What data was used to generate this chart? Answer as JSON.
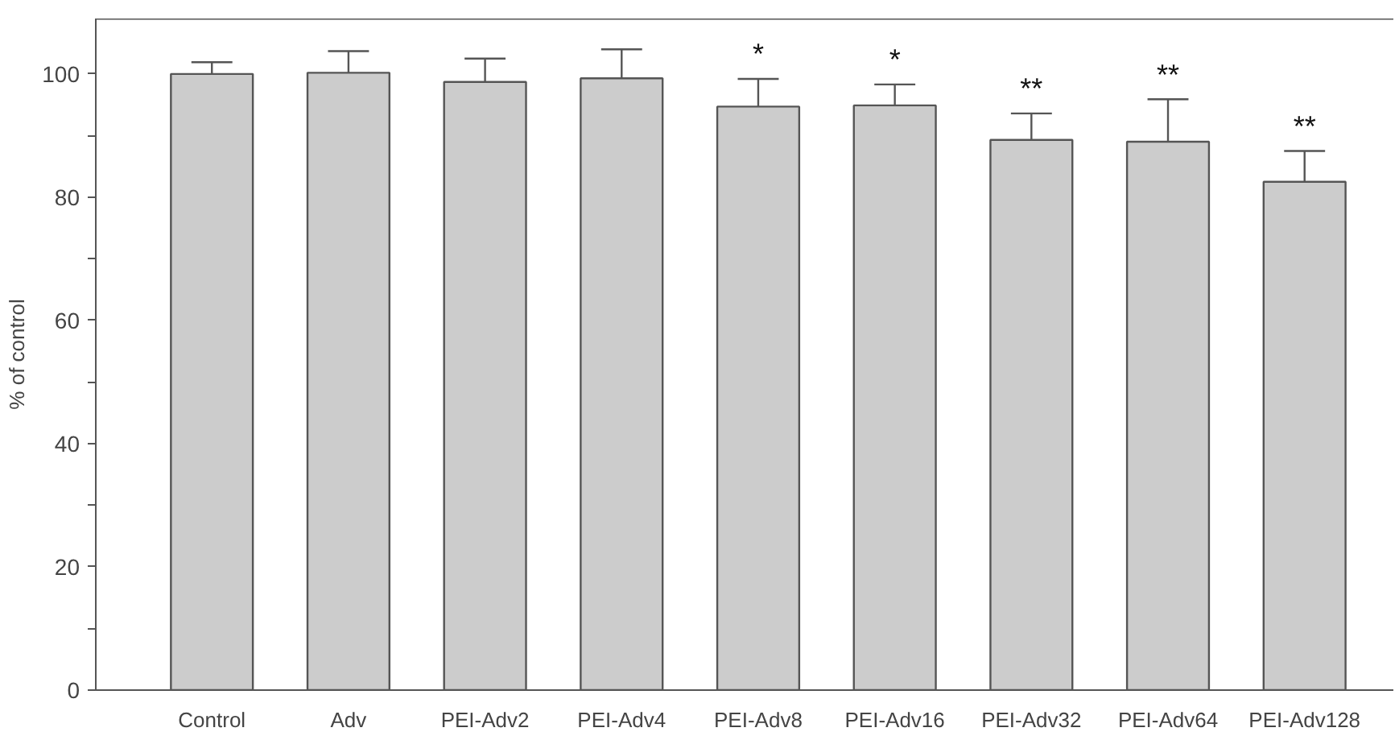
{
  "chart_data": {
    "type": "bar",
    "ylabel": "% of control",
    "categories": [
      "Control",
      "Adv",
      "PEI-Adv2",
      "PEI-Adv4",
      "PEI-Adv8",
      "PEI-Adv16",
      "PEI-Adv32",
      "PEI-Adv64",
      "PEI-Adv128"
    ],
    "values": [
      100,
      100.2,
      98.7,
      99.3,
      94.7,
      94.9,
      89.3,
      89.0,
      82.5
    ],
    "errors": [
      [
        100,
        101.9
      ],
      [
        100.2,
        103.7
      ],
      [
        98.7,
        102.5
      ],
      [
        99.3,
        104.0
      ],
      [
        94.7,
        99.2
      ],
      [
        94.9,
        98.3
      ],
      [
        89.3,
        93.6
      ],
      [
        89.0,
        95.9
      ],
      [
        82.5,
        87.5
      ]
    ],
    "color": "#cccccc",
    "ylim": [
      0,
      109
    ],
    "yticks": [
      0,
      {
        "value": 10,
        "label": null
      },
      20,
      {
        "value": 30,
        "label": null
      },
      40,
      {
        "value": 50,
        "label": null
      },
      60,
      {
        "value": 70,
        "label": null
      },
      80,
      {
        "value": 90,
        "label": null
      },
      100
    ],
    "grid": false,
    "annotations": [
      "*",
      "*",
      "**",
      "**",
      "**"
    ]
  }
}
